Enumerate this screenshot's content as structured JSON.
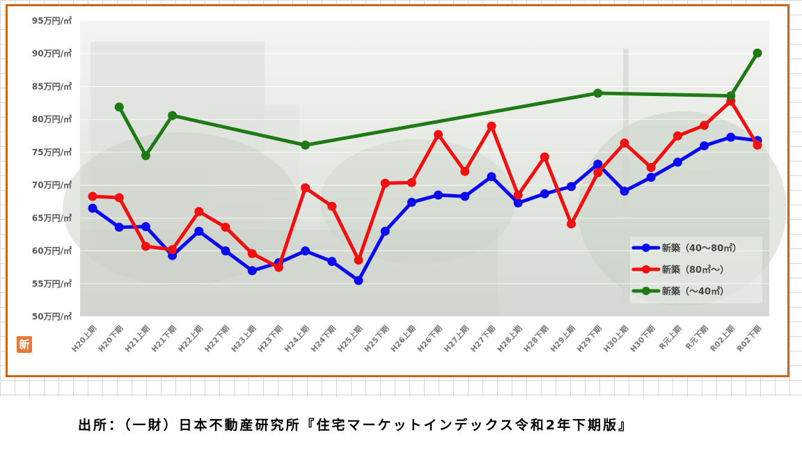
{
  "colors": {
    "frame": "#c8671a",
    "series_blue": "#0a0af0",
    "series_red": "#f01010",
    "series_green": "#1e7a14"
  },
  "logo_text": "新",
  "source_text": "出所：（一財）日本不動産研究所『住宅マーケットインデックス令和2年下期版』",
  "chart_data": {
    "type": "line",
    "ylim": [
      50,
      95
    ],
    "y_ticks": [
      "50万円/㎡",
      "55万円/㎡",
      "60万円/㎡",
      "65万円/㎡",
      "70万円/㎡",
      "75万円/㎡",
      "80万円/㎡",
      "85万円/㎡",
      "90万円/㎡",
      "95万円/㎡"
    ],
    "categories": [
      "H20上期",
      "H20下期",
      "H21上期",
      "H21下期",
      "H22上期",
      "H22下期",
      "H23上期",
      "H23下期",
      "H24上期",
      "H24下期",
      "H25上期",
      "H25下期",
      "H26上期",
      "H26下期",
      "H27上期",
      "H27下期",
      "H28上期",
      "H28下期",
      "H29上期",
      "H29下期",
      "H30上期",
      "H30下期",
      "R元上期",
      "R元下期",
      "R02上期",
      "R02下期"
    ],
    "legend_position": "lower-right",
    "series": [
      {
        "name": "新築（40～80㎡）",
        "color": "#0a0af0",
        "values": [
          66.5,
          63.6,
          63.7,
          59.3,
          63.0,
          60.0,
          57.0,
          58.2,
          60.0,
          58.4,
          55.5,
          63.0,
          67.4,
          68.5,
          68.3,
          71.3,
          67.3,
          68.7,
          69.8,
          73.2,
          69.1,
          71.2,
          73.5,
          76.0,
          77.3,
          76.8
        ]
      },
      {
        "name": "新築（80㎡～）",
        "color": "#f01010",
        "values": [
          68.3,
          68.1,
          60.7,
          60.2,
          66.0,
          63.6,
          59.6,
          57.5,
          69.6,
          66.8,
          58.6,
          70.3,
          70.4,
          77.7,
          72.1,
          79.0,
          68.5,
          74.3,
          64.1,
          71.9,
          76.4,
          72.7,
          77.5,
          79.1,
          82.8,
          76.1
        ]
      },
      {
        "name": "新築（～40㎡）",
        "color": "#1e7a14",
        "values": [
          null,
          81.9,
          74.5,
          80.6,
          null,
          null,
          null,
          null,
          76.1,
          null,
          null,
          null,
          null,
          null,
          null,
          null,
          null,
          null,
          null,
          84.0,
          null,
          null,
          null,
          null,
          83.6,
          90.1
        ]
      }
    ]
  }
}
